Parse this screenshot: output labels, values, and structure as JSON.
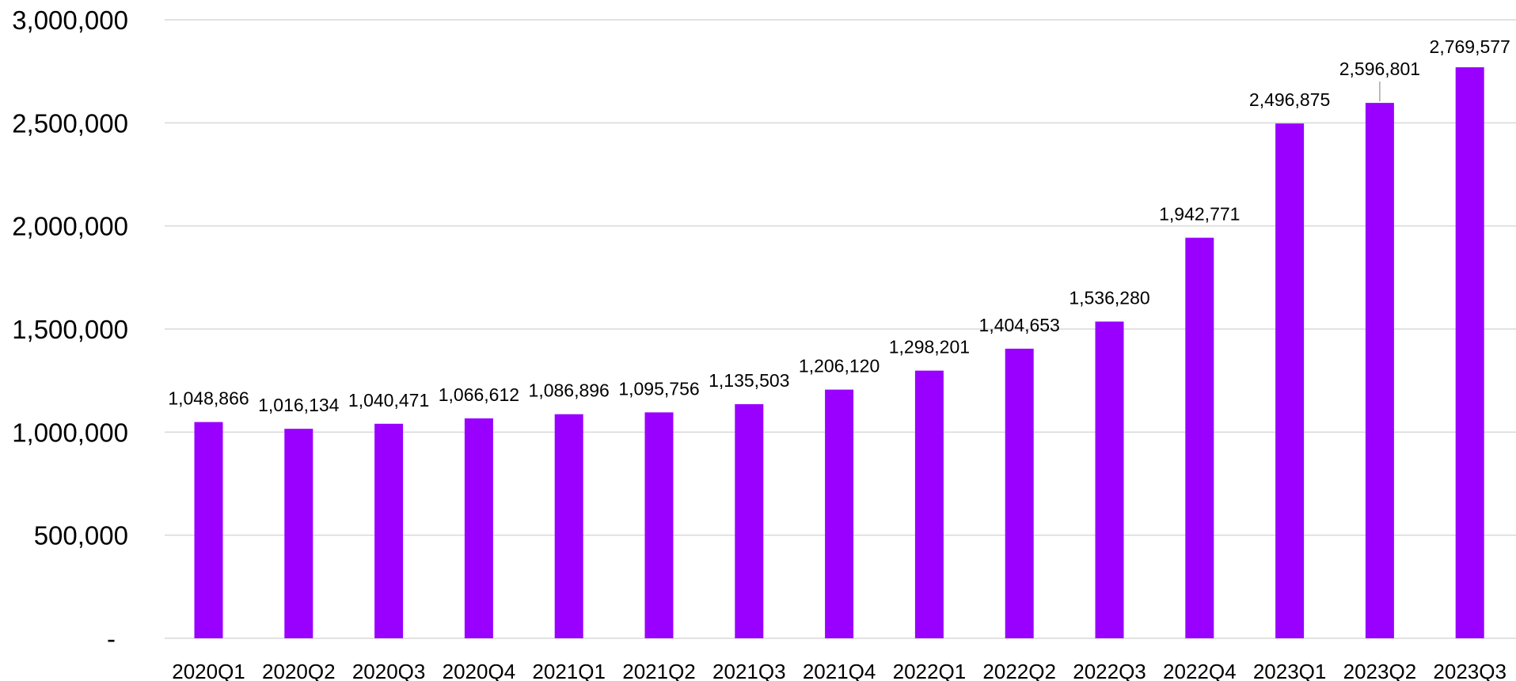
{
  "chart_data": {
    "type": "bar",
    "title": "",
    "xlabel": "",
    "ylabel": "",
    "categories": [
      "2020Q1",
      "2020Q2",
      "2020Q3",
      "2020Q4",
      "2021Q1",
      "2021Q2",
      "2021Q3",
      "2021Q4",
      "2022Q1",
      "2022Q2",
      "2022Q3",
      "2022Q4",
      "2023Q1",
      "2023Q2",
      "2023Q3"
    ],
    "values": [
      1048866,
      1016134,
      1040471,
      1066612,
      1086896,
      1095756,
      1135503,
      1206120,
      1298201,
      1404653,
      1536280,
      1942771,
      2496875,
      2596801,
      2769577
    ],
    "data_labels": [
      "1,048,866",
      "1,016,134",
      "1,040,471",
      "1,066,612",
      "1,086,896",
      "1,095,756",
      "1,135,503",
      "1,206,120",
      "1,298,201",
      "1,404,653",
      "1,536,280",
      "1,942,771",
      "2,496,875",
      "2,596,801",
      "2,769,577"
    ],
    "ylim": [
      0,
      3000000
    ],
    "y_ticks": [
      0,
      500000,
      1000000,
      1500000,
      2000000,
      2500000,
      3000000
    ],
    "y_tick_labels": [
      "-",
      "500,000",
      "1,000,000",
      "1,500,000",
      "2,000,000",
      "2,500,000",
      "3,000,000"
    ],
    "grid": true,
    "legend": "none",
    "colors": {
      "bar": "#9900ff",
      "grid": "#d9d9d9",
      "text": "#000000"
    }
  }
}
